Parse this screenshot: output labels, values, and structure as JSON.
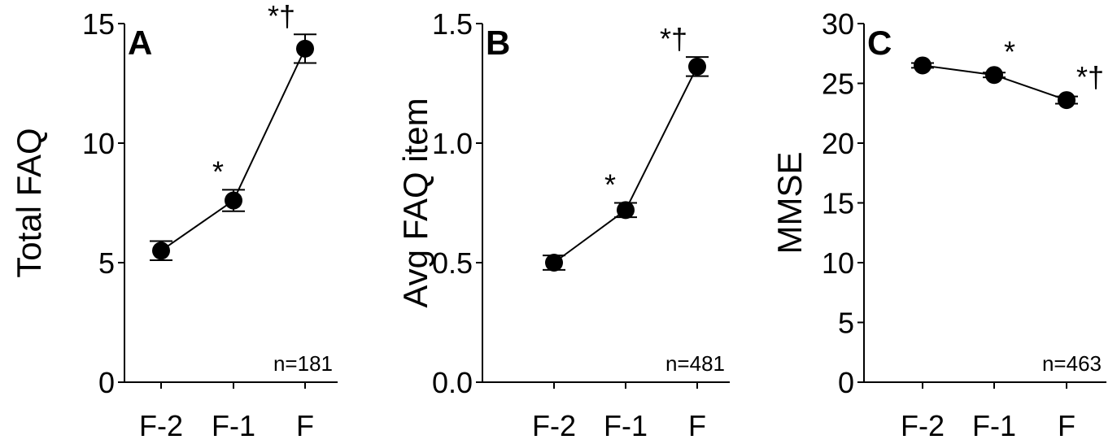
{
  "chart_data": [
    {
      "type": "line",
      "panel_label": "A",
      "ylabel": "Total FAQ",
      "categories": [
        "F-2",
        "F-1",
        "F"
      ],
      "values": [
        5.5,
        7.6,
        13.95
      ],
      "error": [
        0.4,
        0.45,
        0.6
      ],
      "ylim": [
        0,
        15
      ],
      "yticks": [
        "0",
        "5",
        "10",
        "15"
      ],
      "significance": [
        "",
        "*",
        "*†"
      ],
      "n_label": "n=181",
      "grid": false
    },
    {
      "type": "line",
      "panel_label": "B",
      "ylabel": "Avg FAQ item",
      "categories": [
        "F-2",
        "F-1",
        "F"
      ],
      "values": [
        0.5,
        0.72,
        1.32
      ],
      "error": [
        0.03,
        0.03,
        0.04
      ],
      "ylim": [
        0,
        1.5
      ],
      "yticks": [
        "0.0",
        "0.5",
        "1.0",
        "1.5"
      ],
      "significance": [
        "",
        "*",
        "*†"
      ],
      "n_label": "n=481",
      "grid": false
    },
    {
      "type": "line",
      "panel_label": "C",
      "ylabel": "MMSE",
      "categories": [
        "F-2",
        "F-1",
        "F"
      ],
      "values": [
        26.5,
        25.7,
        23.6
      ],
      "error": [
        0.2,
        0.2,
        0.3
      ],
      "ylim": [
        0,
        30
      ],
      "yticks": [
        "0",
        "5",
        "10",
        "15",
        "20",
        "25",
        "30"
      ],
      "significance": [
        "",
        "*",
        "*†"
      ],
      "n_label": "n=463",
      "grid": false
    }
  ]
}
